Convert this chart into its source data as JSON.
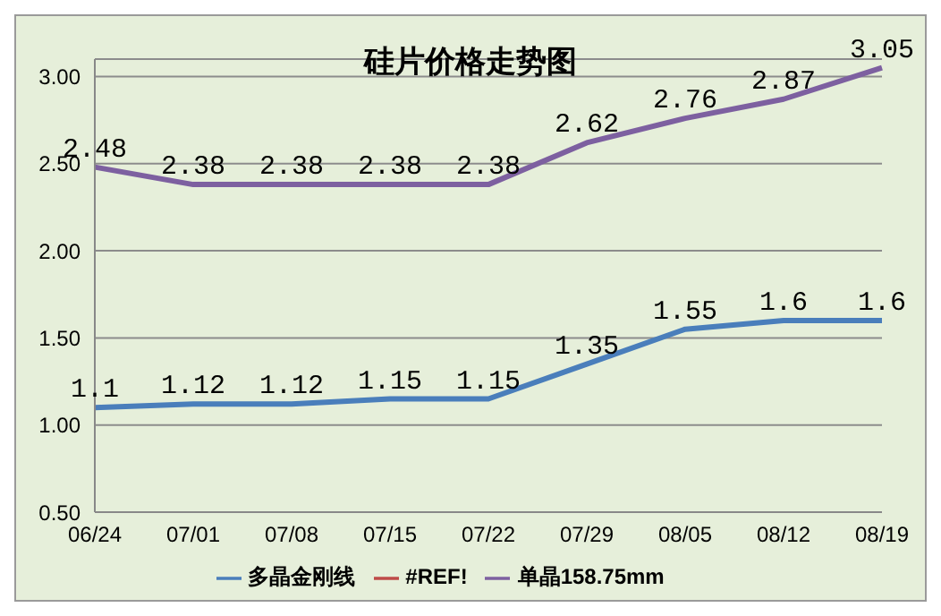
{
  "chart_data": {
    "type": "line",
    "title": "硅片价格走势图",
    "categories": [
      "06/24",
      "07/01",
      "07/08",
      "07/15",
      "07/22",
      "07/29",
      "08/05",
      "08/12",
      "08/19"
    ],
    "series": [
      {
        "name": "多晶金刚线",
        "color": "#4a7ebb",
        "values": [
          1.1,
          1.12,
          1.12,
          1.15,
          1.15,
          1.35,
          1.55,
          1.6,
          1.6
        ]
      },
      {
        "name": "#REF!",
        "color": "#be4b48",
        "values": [
          null,
          null,
          null,
          null,
          null,
          null,
          null,
          null,
          null
        ]
      },
      {
        "name": "单晶158.75mm",
        "color": "#7d60a0",
        "values": [
          2.48,
          2.38,
          2.38,
          2.38,
          2.38,
          2.62,
          2.76,
          2.87,
          3.05
        ]
      }
    ],
    "ylim": [
      0.5,
      3.1
    ],
    "yticks": [
      {
        "value": 0.5,
        "label": "0.50"
      },
      {
        "value": 1,
        "label": "1.00"
      },
      {
        "value": 1.5,
        "label": "1.50"
      },
      {
        "value": 2,
        "label": "2.00"
      },
      {
        "value": 2.5,
        "label": "2.50"
      },
      {
        "value": 3,
        "label": "3.00"
      }
    ],
    "grid": "y",
    "legend": "bottom",
    "data_labels": true,
    "marker": "none",
    "line_style": "solid"
  }
}
